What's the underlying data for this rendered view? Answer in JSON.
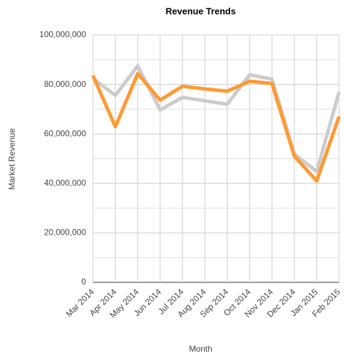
{
  "chart_data": {
    "type": "line",
    "title": "Revenue Trends",
    "x_label": "Month",
    "y_label": "Market Revenue",
    "categories": [
      "Mar 2014",
      "Apr 2014",
      "May 2014",
      "Jun 2014",
      "Jul 2014",
      "Aug 2014",
      "Sep 2014",
      "Oct 2014",
      "Nov 2014",
      "Dec 2014",
      "Jan 2015",
      "Feb 2015"
    ],
    "series": [
      {
        "color": "#cccccc",
        "values": [
          82400000,
          75600000,
          87500000,
          69700000,
          74800000,
          73400000,
          72000000,
          83900000,
          82200000,
          51800000,
          44800000,
          77000000
        ]
      },
      {
        "color": "#ff9933",
        "values": [
          83600000,
          62900000,
          84400000,
          73700000,
          79300000,
          78200000,
          77300000,
          81300000,
          80400000,
          51000000,
          41000000,
          67100000
        ]
      }
    ],
    "ylim": [
      0,
      100000000
    ],
    "yticks": [
      0,
      {
        "value": 20000000,
        "label": "20,000,000"
      },
      {
        "value": 40000000,
        "label": "40,000,000"
      },
      {
        "value": 60000000,
        "label": "60,000,000"
      },
      {
        "value": 80000000,
        "label": "80,000,000"
      },
      {
        "value": 100000000,
        "label": "100,000,000"
      }
    ],
    "minor_yticks": [
      10000000,
      30000000,
      50000000,
      70000000,
      90000000
    ],
    "grid": true
  }
}
